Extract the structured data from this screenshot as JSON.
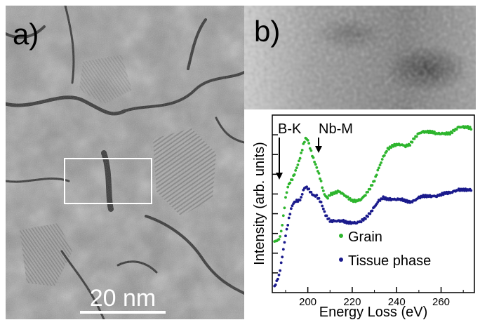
{
  "panel_a": {
    "label": "a)",
    "scale_bar": "20 nm"
  },
  "panel_b": {
    "label": "b)"
  },
  "colors": {
    "grain": "#2db52d",
    "tissue": "#1a1a8c"
  },
  "chart_data": {
    "type": "scatter",
    "xlabel": "Energy Loss (eV)",
    "ylabel": "Intensity (arb. units)",
    "xlim": [
      184,
      275
    ],
    "ylim": [
      0,
      10
    ],
    "x_ticks": [
      200,
      220,
      240,
      260
    ],
    "annotations": [
      "B-K",
      "Nb-M"
    ],
    "series": [
      {
        "name": "Grain",
        "x": [
          185,
          187,
          188,
          189,
          190,
          191,
          192,
          193,
          194,
          195,
          196,
          197,
          198,
          199,
          200,
          201,
          202,
          203,
          204,
          205,
          206,
          207,
          208,
          209,
          210,
          212,
          214,
          216,
          218,
          220,
          222,
          224,
          226,
          228,
          230,
          232,
          234,
          236,
          238,
          240,
          242,
          244,
          246,
          248,
          250,
          252,
          254,
          256,
          258,
          260,
          262,
          264,
          266,
          268,
          270,
          272,
          274
        ],
        "values": [
          3.0,
          3.1,
          3.6,
          4.6,
          5.8,
          6.5,
          6.8,
          7.0,
          7.3,
          7.7,
          8.1,
          8.6,
          9.2,
          9.6,
          9.5,
          9.0,
          8.5,
          8.1,
          7.7,
          7.3,
          6.8,
          6.2,
          5.9,
          5.8,
          6.0,
          6.1,
          6.2,
          6.0,
          5.8,
          5.6,
          5.6,
          5.7,
          6.0,
          6.4,
          6.9,
          7.7,
          8.4,
          8.9,
          9.1,
          9.2,
          9.2,
          9.1,
          9.2,
          9.6,
          9.9,
          10.0,
          10.0,
          10.0,
          9.9,
          9.9,
          9.9,
          9.9,
          10.1,
          10.3,
          10.3,
          10.3,
          10.2
        ]
      },
      {
        "name": "Tissue phase",
        "x": [
          185,
          187,
          188,
          189,
          190,
          191,
          192,
          193,
          194,
          195,
          196,
          197,
          198,
          199,
          200,
          201,
          202,
          203,
          204,
          205,
          206,
          207,
          208,
          209,
          210,
          212,
          214,
          216,
          218,
          220,
          222,
          224,
          226,
          228,
          230,
          232,
          234,
          236,
          238,
          240,
          242,
          244,
          246,
          248,
          250,
          252,
          254,
          256,
          258,
          260,
          262,
          264,
          266,
          268,
          270,
          272,
          274
        ],
        "values": [
          0.1,
          0.8,
          1.6,
          2.5,
          3.4,
          4.1,
          4.8,
          5.3,
          5.5,
          5.6,
          5.6,
          5.8,
          6.3,
          6.5,
          6.4,
          6.2,
          6.0,
          5.9,
          5.9,
          5.7,
          5.5,
          5.1,
          4.7,
          4.5,
          4.3,
          4.3,
          4.3,
          4.3,
          4.2,
          4.2,
          4.2,
          4.3,
          4.5,
          4.8,
          5.2,
          5.6,
          5.8,
          5.7,
          5.7,
          5.7,
          5.7,
          5.6,
          5.5,
          5.6,
          5.8,
          5.9,
          5.9,
          5.9,
          5.9,
          6.0,
          6.1,
          6.1,
          6.2,
          6.3,
          6.3,
          6.3,
          6.3
        ]
      }
    ]
  }
}
